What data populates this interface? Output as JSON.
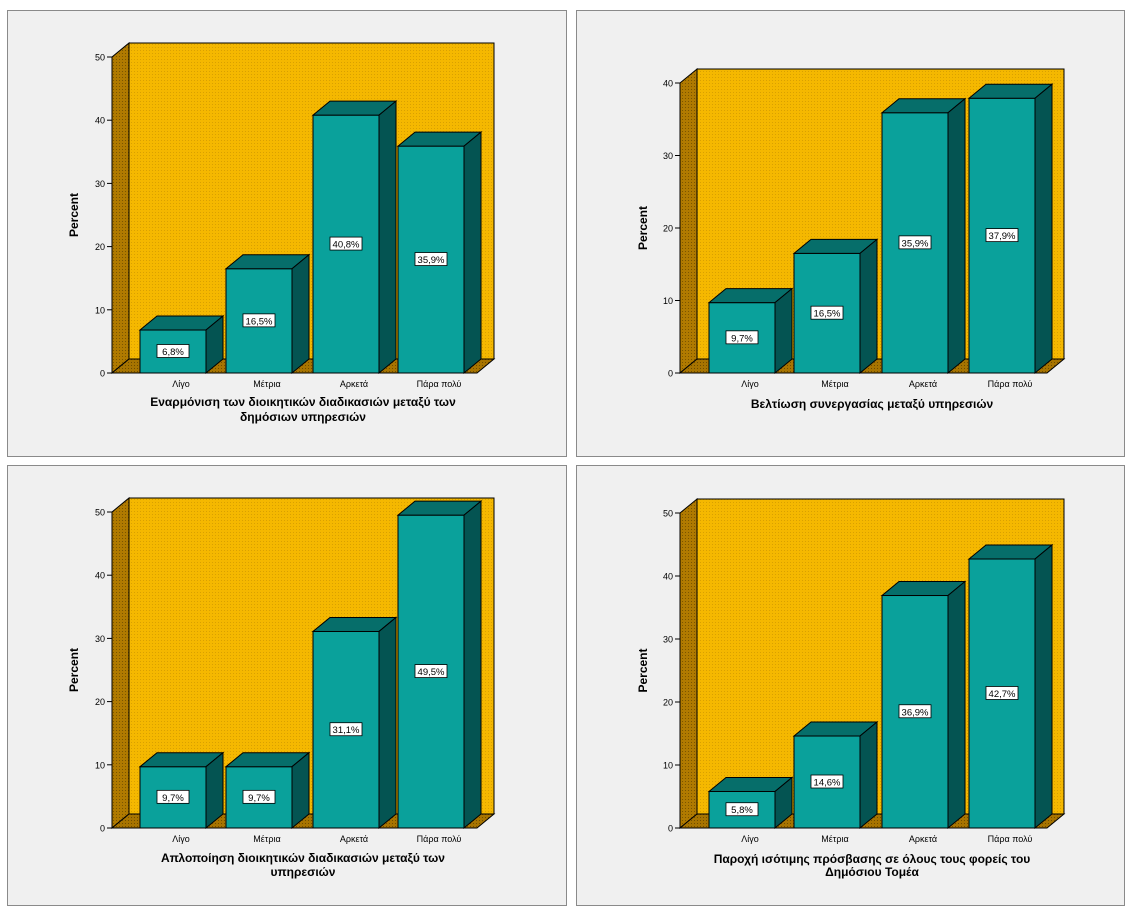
{
  "colors": {
    "back_wall": "#f5b800",
    "side_wall": "#b07a00",
    "floor": "#a77400",
    "bar_front": "#0aa19b",
    "bar_top": "#066e6a",
    "bar_side": "#045452",
    "panel_bg": "#f0f0f0"
  },
  "chart_data": [
    {
      "type": "bar",
      "title": "",
      "xlabel": "Εναρμόνιση των διοικητικών διαδικασιών μεταξύ των δημόσιων υπηρεσιών",
      "xlabel_lines": [
        "Εναρμόνιση των διοικητικών διαδικασιών μεταξύ των",
        "δημόσιων υπηρεσιών"
      ],
      "ylabel": "Percent",
      "categories": [
        "Λίγο",
        "Μέτρια",
        "Αρκετά",
        "Πάρα πολύ"
      ],
      "values": [
        6.8,
        16.5,
        40.8,
        35.9
      ],
      "value_labels": [
        "6,8%",
        "16,5%",
        "40,8%",
        "35,9%"
      ],
      "ylim": [
        0,
        50
      ],
      "yticks": [
        0,
        10,
        20,
        30,
        40,
        50
      ]
    },
    {
      "type": "bar",
      "title": "",
      "xlabel": "Βελτίωση συνεργασίας μεταξύ υπηρεσιών",
      "xlabel_lines": [
        "Βελτίωση συνεργασίας μεταξύ υπηρεσιών"
      ],
      "ylabel": "Percent",
      "categories": [
        "Λίγο",
        "Μέτρια",
        "Αρκετά",
        "Πάρα πολύ"
      ],
      "values": [
        9.7,
        16.5,
        35.9,
        37.9
      ],
      "value_labels": [
        "9,7%",
        "16,5%",
        "35,9%",
        "37,9%"
      ],
      "ylim": [
        0,
        40
      ],
      "yticks": [
        0,
        10,
        20,
        30,
        40
      ]
    },
    {
      "type": "bar",
      "title": "",
      "xlabel": "Απλοποίηση διοικητικών διαδικασιών μεταξύ των υπηρεσιών",
      "xlabel_lines": [
        "Απλοποίηση διοικητικών διαδικασιών μεταξύ των",
        "υπηρεσιών"
      ],
      "ylabel": "Percent",
      "categories": [
        "Λίγο",
        "Μέτρια",
        "Αρκετά",
        "Πάρα πολύ"
      ],
      "values": [
        9.7,
        9.7,
        31.1,
        49.5
      ],
      "value_labels": [
        "9,7%",
        "9,7%",
        "31,1%",
        "49,5%"
      ],
      "ylim": [
        0,
        50
      ],
      "yticks": [
        0,
        10,
        20,
        30,
        40,
        50
      ]
    },
    {
      "type": "bar",
      "title": "",
      "xlabel": "Παροχή ισότιμης πρόσβασης σε όλους τους φορείς του Δημόσιου Τομέα",
      "xlabel_lines": [
        "Παροχή ισότιμης πρόσβασης σε όλους τους φορείς του",
        "Δημόσιου Τομέα"
      ],
      "ylabel": "Percent",
      "categories": [
        "Λίγο",
        "Μέτρια",
        "Αρκετά",
        "Πάρα πολύ"
      ],
      "values": [
        5.8,
        14.6,
        36.9,
        42.7
      ],
      "value_labels": [
        "5,8%",
        "14,6%",
        "36,9%",
        "42,7%"
      ],
      "ylim": [
        0,
        50
      ],
      "yticks": [
        0,
        10,
        20,
        30,
        40,
        50
      ]
    }
  ]
}
